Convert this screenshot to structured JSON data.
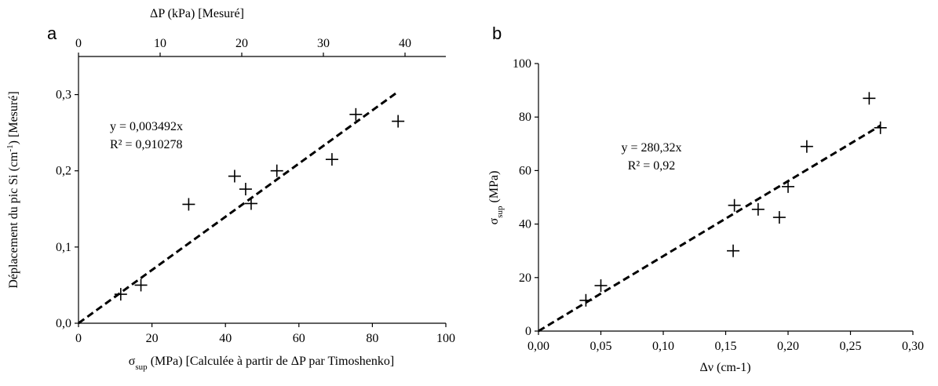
{
  "chart_data": [
    {
      "type": "scatter",
      "panel_label": "a",
      "title": "",
      "xlabel_prefix": "σ",
      "xlabel_sub": "sup",
      "xlabel_suffix": " (MPa) [Calculée à partir de ΔP par Timoshenko]",
      "ylabel_prefix": "Déplacement du pic Si (cm",
      "ylabel_sup": "-1",
      "ylabel_suffix": ") [Mesuré]",
      "top_xlabel": "ΔP (kPa) [Mesuré]",
      "xlim": [
        0,
        100
      ],
      "ylim": [
        0,
        0.35
      ],
      "top_xlim": [
        0,
        45
      ],
      "x_ticks": [
        0,
        20,
        40,
        60,
        80,
        100
      ],
      "x_tick_labels": [
        "0",
        "20",
        "40",
        "60",
        "80",
        "100"
      ],
      "y_ticks": [
        0,
        0.1,
        0.2,
        0.3
      ],
      "y_tick_labels": [
        "0,0",
        "0,1",
        "0,2",
        "0,3"
      ],
      "top_ticks": [
        0,
        10,
        20,
        30,
        40
      ],
      "top_tick_labels": [
        "0",
        "10",
        "20",
        "30",
        "40"
      ],
      "series": [
        {
          "marker": "plus",
          "x": [
            11.5,
            17,
            30,
            42.5,
            45.5,
            47,
            54,
            69,
            75.5,
            87
          ],
          "y": [
            0.038,
            0.05,
            0.156,
            0.193,
            0.176,
            0.157,
            0.2,
            0.215,
            0.274,
            0.265
          ]
        }
      ],
      "trendline": {
        "slope": 0.003492,
        "x_range": [
          0,
          87
        ],
        "style": "dashed"
      },
      "equation": "y = 0,003492x",
      "r2": "R² = 0,910278",
      "grid": false,
      "legend": "none"
    },
    {
      "type": "scatter",
      "panel_label": "b",
      "title": "",
      "xlabel": "Δν (cm-1)",
      "ylabel_prefix": "σ",
      "ylabel_sub": "sup",
      "ylabel_suffix": " (MPa)",
      "xlim": [
        0,
        0.3
      ],
      "ylim": [
        0,
        100
      ],
      "x_ticks": [
        0,
        0.05,
        0.1,
        0.15,
        0.2,
        0.25,
        0.3
      ],
      "x_tick_labels": [
        "0,00",
        "0,05",
        "0,10",
        "0,15",
        "0,20",
        "0,25",
        "0,30"
      ],
      "y_ticks": [
        0,
        20,
        40,
        60,
        80,
        100
      ],
      "y_tick_labels": [
        "0",
        "20",
        "40",
        "60",
        "80",
        "100"
      ],
      "series": [
        {
          "marker": "plus",
          "x": [
            0.038,
            0.05,
            0.156,
            0.157,
            0.176,
            0.193,
            0.2,
            0.215,
            0.265,
            0.274
          ],
          "y": [
            11.5,
            17,
            30,
            47,
            45.5,
            42.5,
            54,
            69,
            87,
            76
          ]
        }
      ],
      "trendline": {
        "slope": 280.32,
        "x_range": [
          0,
          0.274
        ],
        "style": "dashed"
      },
      "equation": "y = 280,32x",
      "r2": "R² = 0,92",
      "grid": false,
      "legend": "none"
    }
  ]
}
